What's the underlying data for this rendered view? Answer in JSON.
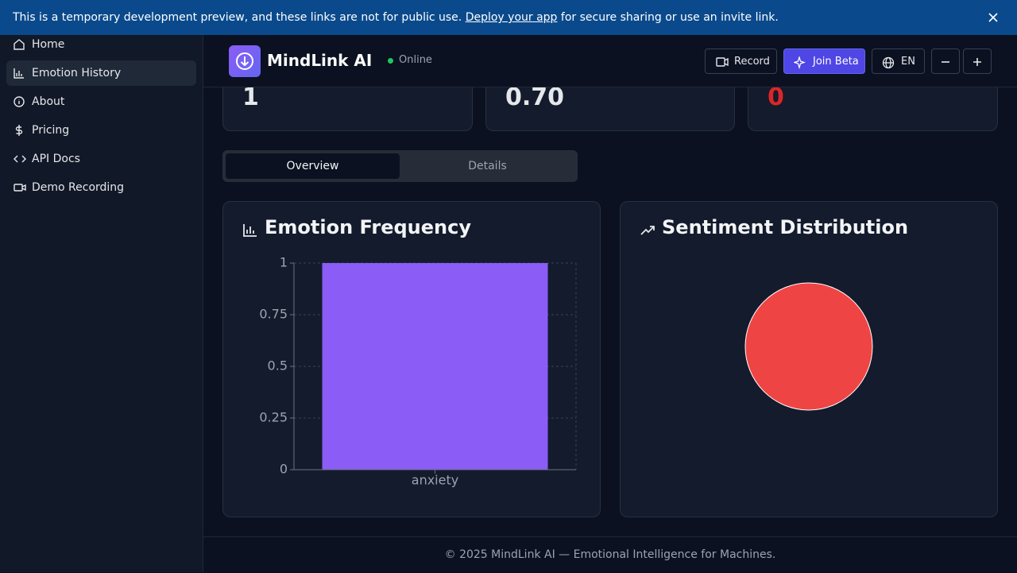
{
  "banner": {
    "text": "This is a temporary development preview, and these links are not for public use.",
    "link": "Deploy your app",
    "text_after": "for secure sharing or use an invite link."
  },
  "sidebar": {
    "items": [
      "Home",
      "Emotion History",
      "About",
      "Pricing",
      "API Docs",
      "Demo Recording"
    ]
  },
  "header": {
    "title": "MindLink AI",
    "status": "Online",
    "buttons": [
      "Record",
      "Join Beta",
      "EN"
    ]
  },
  "stats": [
    "1",
    "0.70",
    "0"
  ],
  "tabs": [
    "Overview",
    "Details"
  ],
  "chart_data": [
    {
      "type": "bar",
      "title": "Emotion Frequency",
      "categories": [
        "anxiety"
      ],
      "values": [
        1
      ],
      "color": "#8b5cf6",
      "ylim": [
        0,
        1
      ],
      "yticks": [
        0,
        0.25,
        0.5,
        0.75,
        1
      ],
      "grid": true
    },
    {
      "type": "pie",
      "title": "Sentiment Distribution",
      "categories": [
        null
      ],
      "values": [
        1
      ],
      "colors": [
        "#ef4444"
      ]
    }
  ],
  "footer": "© 2025 MindLink AI — Emotional Intelligence for Machines."
}
